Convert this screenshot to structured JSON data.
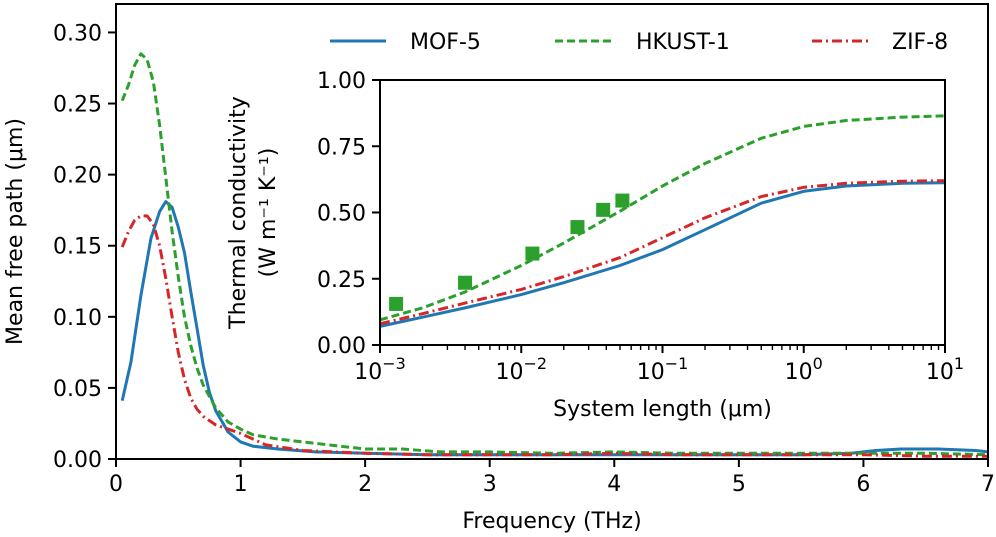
{
  "chart_data": [
    {
      "type": "line",
      "role": "main",
      "xlabel": "Frequency (THz)",
      "ylabel": "Mean free path (μm)",
      "xlim": [
        0,
        7
      ],
      "ylim": [
        0,
        0.32
      ],
      "xticks": [
        0,
        1,
        2,
        3,
        4,
        5,
        6,
        7
      ],
      "xtick_labels": [
        "0",
        "1",
        "2",
        "3",
        "4",
        "5",
        "6",
        "7"
      ],
      "yticks": [
        0.0,
        0.05,
        0.1,
        0.15,
        0.2,
        0.25,
        0.3
      ],
      "ytick_labels": [
        "0.00",
        "0.05",
        "0.10",
        "0.15",
        "0.20",
        "0.25",
        "0.30"
      ],
      "legend": "top-right",
      "series": [
        {
          "name": "MOF-5",
          "color": "#1f77b4",
          "style": "solid",
          "x": [
            0.05,
            0.12,
            0.2,
            0.28,
            0.35,
            0.4,
            0.45,
            0.5,
            0.55,
            0.6,
            0.65,
            0.7,
            0.75,
            0.8,
            0.9,
            1.0,
            1.1,
            1.3,
            1.6,
            2.0,
            2.5,
            3.0,
            3.5,
            4.0,
            4.5,
            5.0,
            5.5,
            5.9,
            6.1,
            6.3,
            6.6,
            6.9,
            7.0
          ],
          "y": [
            0.041,
            0.068,
            0.115,
            0.155,
            0.174,
            0.181,
            0.177,
            0.163,
            0.145,
            0.118,
            0.092,
            0.066,
            0.047,
            0.034,
            0.019,
            0.012,
            0.009,
            0.007,
            0.005,
            0.004,
            0.003,
            0.003,
            0.003,
            0.003,
            0.003,
            0.003,
            0.003,
            0.004,
            0.006,
            0.007,
            0.007,
            0.006,
            0.005
          ]
        },
        {
          "name": "HKUST-1",
          "color": "#2ca02c",
          "style": "dashed",
          "x": [
            0.05,
            0.1,
            0.15,
            0.2,
            0.25,
            0.3,
            0.35,
            0.4,
            0.45,
            0.5,
            0.55,
            0.6,
            0.65,
            0.7,
            0.8,
            0.9,
            1.0,
            1.1,
            1.3,
            1.5,
            1.8,
            2.0,
            2.3,
            2.6,
            3.0,
            3.5,
            4.0,
            4.5,
            5.0,
            5.5,
            6.0,
            6.5,
            7.0
          ],
          "y": [
            0.252,
            0.263,
            0.277,
            0.285,
            0.281,
            0.265,
            0.235,
            0.198,
            0.16,
            0.128,
            0.1,
            0.08,
            0.064,
            0.052,
            0.036,
            0.026,
            0.021,
            0.017,
            0.014,
            0.012,
            0.009,
            0.007,
            0.007,
            0.005,
            0.005,
            0.004,
            0.005,
            0.004,
            0.004,
            0.004,
            0.004,
            0.004,
            0.003
          ]
        },
        {
          "name": "ZIF-8",
          "color": "#d62728",
          "style": "dashdot",
          "x": [
            0.05,
            0.1,
            0.15,
            0.2,
            0.25,
            0.3,
            0.35,
            0.4,
            0.45,
            0.5,
            0.55,
            0.6,
            0.65,
            0.7,
            0.75,
            0.8,
            0.9,
            1.0,
            1.2,
            1.5,
            2.0,
            2.5,
            3.0,
            3.5,
            4.0,
            4.5,
            5.0,
            5.5,
            6.0,
            6.5,
            7.0
          ],
          "y": [
            0.149,
            0.16,
            0.168,
            0.171,
            0.171,
            0.165,
            0.15,
            0.127,
            0.1,
            0.075,
            0.056,
            0.043,
            0.035,
            0.03,
            0.027,
            0.024,
            0.021,
            0.018,
            0.01,
            0.006,
            0.004,
            0.003,
            0.003,
            0.003,
            0.004,
            0.003,
            0.003,
            0.003,
            0.003,
            0.002,
            0.002
          ]
        }
      ]
    },
    {
      "type": "line",
      "role": "inset",
      "xlabel": "System length (μm)",
      "ylabel_line1": "Thermal conductivity",
      "ylabel_line2": "(W m⁻¹ K⁻¹)",
      "xscale": "log",
      "xlim": [
        0.001,
        10
      ],
      "ylim": [
        0,
        1.0
      ],
      "xticks": [
        0.001,
        0.01,
        0.1,
        1,
        10
      ],
      "xtick_bases": [
        "10",
        "10",
        "10",
        "10",
        "10"
      ],
      "xtick_exponents": [
        "−3",
        "−2",
        "−1",
        "0",
        "1"
      ],
      "yticks": [
        0,
        0.25,
        0.5,
        0.75,
        1.0
      ],
      "ytick_labels": [
        "0.00",
        "0.25",
        "0.50",
        "0.75",
        "1.00"
      ],
      "series": [
        {
          "name": "MOF-5",
          "color": "#1f77b4",
          "style": "solid",
          "x": [
            0.001,
            0.002,
            0.004,
            0.01,
            0.02,
            0.05,
            0.1,
            0.2,
            0.5,
            1,
            2,
            5,
            10
          ],
          "y": [
            0.07,
            0.105,
            0.14,
            0.19,
            0.235,
            0.3,
            0.36,
            0.435,
            0.535,
            0.58,
            0.6,
            0.61,
            0.612
          ]
        },
        {
          "name": "HKUST-1",
          "color": "#2ca02c",
          "style": "dashed",
          "x": [
            0.001,
            0.002,
            0.004,
            0.01,
            0.02,
            0.05,
            0.1,
            0.2,
            0.5,
            1,
            2,
            5,
            10
          ],
          "y": [
            0.095,
            0.14,
            0.2,
            0.3,
            0.385,
            0.505,
            0.6,
            0.685,
            0.78,
            0.825,
            0.847,
            0.86,
            0.865
          ]
        },
        {
          "name": "ZIF-8",
          "color": "#d62728",
          "style": "dashdot",
          "x": [
            0.001,
            0.002,
            0.004,
            0.01,
            0.02,
            0.05,
            0.1,
            0.2,
            0.5,
            1,
            2,
            5,
            10
          ],
          "y": [
            0.08,
            0.118,
            0.158,
            0.21,
            0.258,
            0.33,
            0.405,
            0.48,
            0.56,
            0.595,
            0.61,
            0.618,
            0.62
          ]
        },
        {
          "name": "",
          "color": "#2ca02c",
          "style": "markers",
          "marker": "square",
          "x": [
            0.0013,
            0.004,
            0.012,
            0.025,
            0.038,
            0.052
          ],
          "y": [
            0.155,
            0.235,
            0.345,
            0.445,
            0.51,
            0.545
          ]
        }
      ]
    }
  ]
}
